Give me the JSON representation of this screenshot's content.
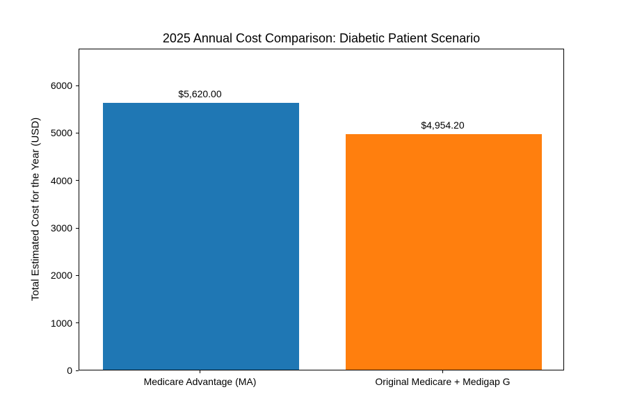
{
  "chart_data": {
    "type": "bar",
    "title": "2025 Annual Cost Comparison: Diabetic Patient Scenario",
    "xlabel": "",
    "ylabel": "Total Estimated Cost for the Year (USD)",
    "categories": [
      "Medicare Advantage (MA)",
      "Original Medicare + Medigap G"
    ],
    "values": [
      5620.0,
      4954.2
    ],
    "value_labels": [
      "$5,620.00",
      "$4,954.20"
    ],
    "bar_colors": [
      "#1f77b4",
      "#ff7f0e"
    ],
    "ylim": [
      0,
      6776
    ],
    "yticks": [
      0,
      1000,
      2000,
      3000,
      4000,
      5000,
      6000
    ],
    "grid": false,
    "legend": null,
    "background_color": "#ffffff",
    "spine_color": "#000000",
    "text_color": "#000000"
  }
}
